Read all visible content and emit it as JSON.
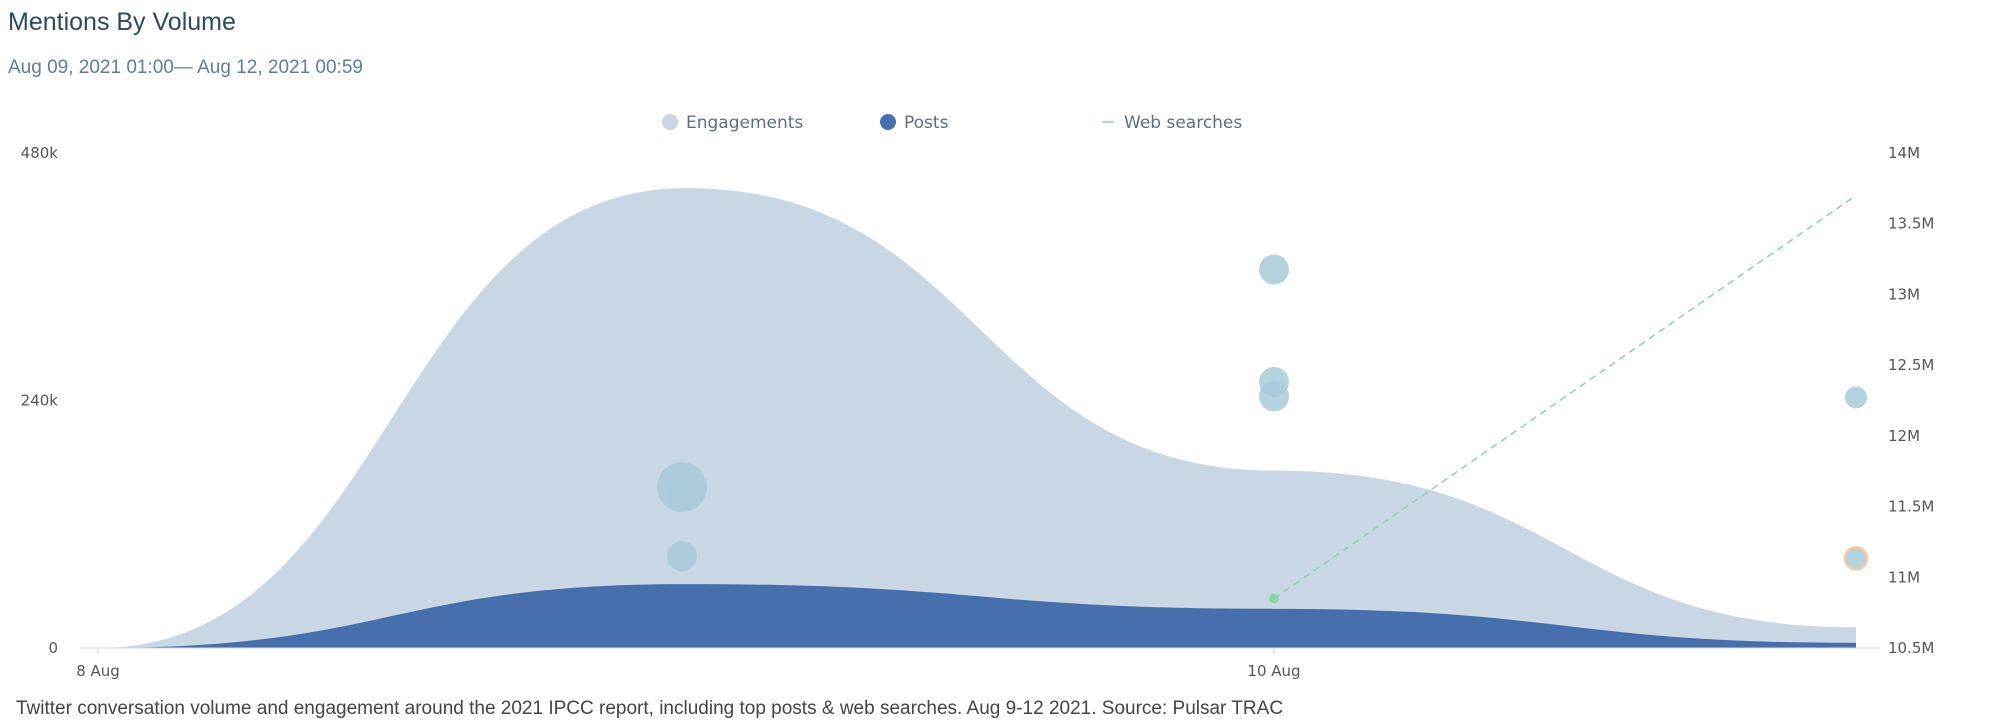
{
  "title": "Mentions By Volume",
  "subtitle": "Aug 09, 2021 01:00— Aug 12, 2021 00:59",
  "caption": "Twitter conversation volume and engagement around the 2021 IPCC report, including top posts & web searches. Aug 9-12 2021. Source: Pulsar TRAC",
  "colors": {
    "engagements": "#c8d7e3",
    "posts": "#476fad",
    "web_searches": "#8dd3a8",
    "bubbles": "#a8cad9",
    "highlight_ring": "#f2c9a2"
  },
  "chart_data": {
    "type": "area",
    "legend_position": "top-center",
    "grid": false,
    "x_ticks": [
      "8 Aug",
      "10 Aug"
    ],
    "y_left": {
      "range": [
        0,
        480000
      ],
      "ticks": [
        "0",
        "240k",
        "480k"
      ]
    },
    "y_right": {
      "range": [
        10500000,
        14000000
      ],
      "ticks": [
        "10.5M",
        "11M",
        "11.5M",
        "12M",
        "12.5M",
        "13M",
        "13.5M",
        "14M"
      ]
    },
    "legend": [
      {
        "name": "Engagements",
        "marker": "circle"
      },
      {
        "name": "Posts",
        "marker": "circle"
      },
      {
        "name": "Web searches",
        "marker": "dash"
      }
    ],
    "x_days": [
      "8 Aug",
      "9 Aug",
      "10 Aug",
      "11 Aug"
    ],
    "series": [
      {
        "name": "Engagements",
        "axis": "left",
        "values": [
          0,
          446000,
          172000,
          20000
        ]
      },
      {
        "name": "Posts",
        "axis": "left",
        "values": [
          0,
          62000,
          38000,
          5000
        ]
      },
      {
        "name": "Web searches",
        "axis": "right",
        "dates": [
          "10 Aug",
          "11 Aug"
        ],
        "values": [
          10850000,
          13700000
        ]
      }
    ],
    "top_posts": [
      {
        "date": "9 Aug",
        "value": 156000,
        "size": "large"
      },
      {
        "date": "9 Aug",
        "value": 148000,
        "size": "medium"
      },
      {
        "date": "9 Aug",
        "value": 89000,
        "size": "medium"
      },
      {
        "date": "10 Aug",
        "value": 367000,
        "size": "medium"
      },
      {
        "date": "10 Aug",
        "value": 258000,
        "size": "medium"
      },
      {
        "date": "10 Aug",
        "value": 244000,
        "size": "medium"
      },
      {
        "date": "11 Aug",
        "value": 243000,
        "size": "small"
      },
      {
        "date": "11 Aug",
        "value": 87000,
        "size": "small",
        "highlighted": true
      }
    ]
  }
}
